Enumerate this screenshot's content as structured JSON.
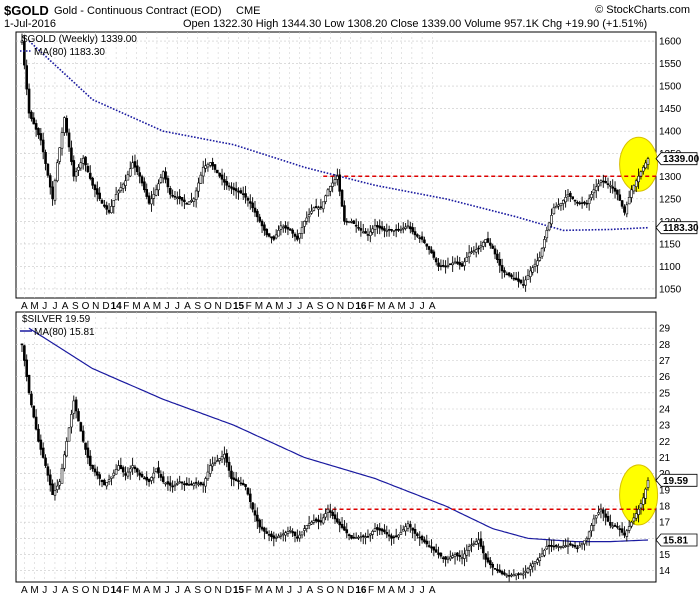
{
  "header": {
    "symbol": "$GOLD",
    "name": "Gold - Continuous Contract (EOD)",
    "exchange": "CME",
    "date": "1-Jul-2016",
    "stats": "Open 1322.30   High 1344.30   Low 1308.20   Close 1339.00   Volume 957.1K   Chg +19.90 (+1.51%)",
    "stats_change_color": "#00aa00",
    "watermark": "© StockCharts.com"
  },
  "colors": {
    "ma_line": "#1a1aa0",
    "resistance_line": "#dd0000",
    "highlight_fill": "#ffff00",
    "candle_body": "#000000",
    "grid": "#c8c8c8"
  },
  "x_axis": {
    "months": [
      "A",
      "M",
      "J",
      "J",
      "A",
      "S",
      "O",
      "N",
      "D",
      "14",
      "F",
      "M",
      "A",
      "M",
      "J",
      "J",
      "A",
      "S",
      "O",
      "N",
      "D",
      "15",
      "F",
      "M",
      "A",
      "M",
      "J",
      "J",
      "A",
      "S",
      "O",
      "N",
      "D",
      "16",
      "F",
      "M",
      "A",
      "M",
      "J",
      "J",
      "A"
    ]
  },
  "chart_data": [
    {
      "type": "candlestick",
      "legend_price": "$GOLD (Weekly) 1339.00",
      "legend_ma": "MA(80) 1183.30",
      "ma_style": "dotted",
      "ylim": [
        1030,
        1620
      ],
      "y_ticks": [
        1050,
        1100,
        1150,
        1200,
        1250,
        1300,
        1350,
        1400,
        1450,
        1500,
        1550,
        1600
      ],
      "last_price_label": "1339.00",
      "ma_last_label": "1183.30",
      "resistance_level": 1300,
      "price_path": [
        [
          0,
          1600
        ],
        [
          3,
          1440
        ],
        [
          8,
          1380
        ],
        [
          13,
          1250
        ],
        [
          15,
          1330
        ],
        [
          18,
          1430
        ],
        [
          22,
          1300
        ],
        [
          26,
          1340
        ],
        [
          30,
          1280
        ],
        [
          34,
          1240
        ],
        [
          37,
          1220
        ],
        [
          40,
          1260
        ],
        [
          44,
          1290
        ],
        [
          47,
          1330
        ],
        [
          50,
          1300
        ],
        [
          54,
          1240
        ],
        [
          57,
          1270
        ],
        [
          60,
          1310
        ],
        [
          63,
          1260
        ],
        [
          67,
          1250
        ],
        [
          70,
          1240
        ],
        [
          73,
          1250
        ],
        [
          77,
          1320
        ],
        [
          80,
          1330
        ],
        [
          84,
          1300
        ],
        [
          87,
          1280
        ],
        [
          90,
          1270
        ],
        [
          94,
          1260
        ],
        [
          97,
          1240
        ],
        [
          100,
          1210
        ],
        [
          104,
          1170
        ],
        [
          107,
          1160
        ],
        [
          110,
          1190
        ],
        [
          114,
          1180
        ],
        [
          117,
          1160
        ],
        [
          120,
          1200
        ],
        [
          124,
          1230
        ],
        [
          127,
          1230
        ],
        [
          130,
          1270
        ],
        [
          134,
          1300
        ],
        [
          137,
          1200
        ],
        [
          140,
          1200
        ],
        [
          144,
          1180
        ],
        [
          147,
          1170
        ],
        [
          150,
          1190
        ],
        [
          154,
          1180
        ],
        [
          157,
          1180
        ],
        [
          160,
          1180
        ],
        [
          164,
          1190
        ],
        [
          167,
          1170
        ],
        [
          170,
          1160
        ],
        [
          174,
          1130
        ],
        [
          177,
          1100
        ],
        [
          180,
          1100
        ],
        [
          184,
          1110
        ],
        [
          187,
          1100
        ],
        [
          190,
          1130
        ],
        [
          194,
          1140
        ],
        [
          197,
          1160
        ],
        [
          200,
          1140
        ],
        [
          204,
          1090
        ],
        [
          207,
          1080
        ],
        [
          210,
          1070
        ],
        [
          213,
          1060
        ],
        [
          216,
          1090
        ],
        [
          220,
          1120
        ],
        [
          223,
          1180
        ],
        [
          226,
          1230
        ],
        [
          229,
          1240
        ],
        [
          232,
          1260
        ],
        [
          236,
          1240
        ],
        [
          240,
          1240
        ],
        [
          243,
          1270
        ],
        [
          246,
          1290
        ],
        [
          250,
          1280
        ],
        [
          253,
          1260
        ],
        [
          256,
          1220
        ],
        [
          259,
          1270
        ],
        [
          262,
          1300
        ],
        [
          264,
          1320
        ],
        [
          266,
          1339
        ]
      ],
      "ma_path": [
        [
          3,
          1600
        ],
        [
          30,
          1470
        ],
        [
          60,
          1400
        ],
        [
          90,
          1370
        ],
        [
          120,
          1320
        ],
        [
          150,
          1280
        ],
        [
          180,
          1250
        ],
        [
          210,
          1210
        ],
        [
          230,
          1180
        ],
        [
          250,
          1182
        ],
        [
          266,
          1186
        ]
      ]
    },
    {
      "type": "candlestick",
      "legend_price": "$SILVER 19.59",
      "legend_ma": "MA(80) 15.81",
      "ma_style": "solid",
      "ylim": [
        13.3,
        30
      ],
      "y_ticks": [
        14,
        15,
        16,
        17,
        18,
        19,
        20,
        21,
        22,
        23,
        24,
        25,
        26,
        27,
        28,
        29
      ],
      "last_price_label": "19.59",
      "ma_last_label": "15.81",
      "resistance_level": 17.8,
      "price_path": [
        [
          0,
          28
        ],
        [
          3,
          25
        ],
        [
          7,
          22
        ],
        [
          10,
          20.5
        ],
        [
          13,
          18.7
        ],
        [
          16,
          19.5
        ],
        [
          19,
          22
        ],
        [
          22,
          24.5
        ],
        [
          26,
          22
        ],
        [
          29,
          20.5
        ],
        [
          32,
          19.9
        ],
        [
          35,
          19.3
        ],
        [
          38,
          19.8
        ],
        [
          41,
          20.5
        ],
        [
          44,
          19.9
        ],
        [
          47,
          20.5
        ],
        [
          50,
          19.9
        ],
        [
          54,
          19.5
        ],
        [
          57,
          20.3
        ],
        [
          60,
          19.5
        ],
        [
          64,
          19.2
        ],
        [
          67,
          19.5
        ],
        [
          70,
          19.3
        ],
        [
          74,
          19.4
        ],
        [
          77,
          19.3
        ],
        [
          80,
          20.5
        ],
        [
          83,
          20.8
        ],
        [
          86,
          21.2
        ],
        [
          89,
          19.7
        ],
        [
          92,
          19.5
        ],
        [
          95,
          19.2
        ],
        [
          98,
          17.8
        ],
        [
          101,
          16.7
        ],
        [
          104,
          16.3
        ],
        [
          107,
          16
        ],
        [
          110,
          16.2
        ],
        [
          114,
          16.5
        ],
        [
          117,
          16
        ],
        [
          121,
          16.8
        ],
        [
          124,
          17.1
        ],
        [
          127,
          17
        ],
        [
          130,
          17.8
        ],
        [
          134,
          17
        ],
        [
          137,
          16.5
        ],
        [
          140,
          16
        ],
        [
          144,
          16.1
        ],
        [
          147,
          16.1
        ],
        [
          150,
          16.6
        ],
        [
          154,
          16.4
        ],
        [
          157,
          16
        ],
        [
          160,
          16.2
        ],
        [
          164,
          16.9
        ],
        [
          167,
          16.3
        ],
        [
          170,
          15.9
        ],
        [
          174,
          15.4
        ],
        [
          177,
          15
        ],
        [
          180,
          14.7
        ],
        [
          184,
          15
        ],
        [
          187,
          14.8
        ],
        [
          190,
          15.5
        ],
        [
          194,
          15.9
        ],
        [
          197,
          14.7
        ],
        [
          200,
          14.2
        ],
        [
          204,
          13.8
        ],
        [
          207,
          13.7
        ],
        [
          210,
          13.8
        ],
        [
          213,
          13.8
        ],
        [
          216,
          14.3
        ],
        [
          220,
          14.8
        ],
        [
          223,
          15.5
        ],
        [
          226,
          15.5
        ],
        [
          229,
          15.5
        ],
        [
          233,
          15.6
        ],
        [
          236,
          15.4
        ],
        [
          240,
          16
        ],
        [
          243,
          17.2
        ],
        [
          246,
          17.8
        ],
        [
          250,
          16.8
        ],
        [
          253,
          16.7
        ],
        [
          256,
          16.2
        ],
        [
          259,
          17
        ],
        [
          262,
          17.8
        ],
        [
          264,
          18.5
        ],
        [
          266,
          19.59
        ]
      ],
      "ma_path": [
        [
          3,
          29
        ],
        [
          30,
          26.5
        ],
        [
          60,
          24.6
        ],
        [
          90,
          23
        ],
        [
          120,
          21
        ],
        [
          150,
          19.7
        ],
        [
          180,
          18
        ],
        [
          200,
          16.6
        ],
        [
          215,
          16
        ],
        [
          235,
          15.8
        ],
        [
          250,
          15.8
        ],
        [
          266,
          15.9
        ]
      ]
    }
  ]
}
